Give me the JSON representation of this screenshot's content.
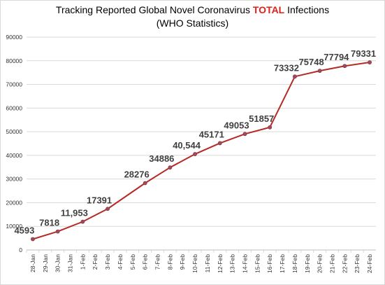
{
  "chart_data": {
    "type": "line",
    "title_prefix": "Tracking Reported Global Novel Coronavirus ",
    "title_highlight": "TOTAL",
    "title_suffix": " Infections",
    "subtitle": "(WHO Statistics)",
    "xlabel": "",
    "ylabel": "",
    "categories": [
      "28-Jan",
      "29-Jan",
      "30-Jan",
      "31-Jan",
      "1-Feb",
      "2-Feb",
      "3-Feb",
      "4-Feb",
      "5-Feb",
      "6-Feb",
      "7-Feb",
      "8-Feb",
      "9-Feb",
      "10-Feb",
      "11-Feb",
      "12-Feb",
      "13-Feb",
      "14-Feb",
      "15-Feb",
      "16-Feb",
      "17-Feb",
      "18-Feb",
      "19-Feb",
      "20-Feb",
      "21-Feb",
      "22-Feb",
      "23-Feb",
      "24-Feb"
    ],
    "points": [
      {
        "category": "28-Jan",
        "value": 4593,
        "label": "4593"
      },
      {
        "category": "30-Jan",
        "value": 7818,
        "label": "7818"
      },
      {
        "category": "1-Feb",
        "value": 11953,
        "label": "11,953"
      },
      {
        "category": "3-Feb",
        "value": 17391,
        "label": "17391"
      },
      {
        "category": "6-Feb",
        "value": 28276,
        "label": "28276"
      },
      {
        "category": "8-Feb",
        "value": 34886,
        "label": "34886"
      },
      {
        "category": "10-Feb",
        "value": 40544,
        "label": "40,544"
      },
      {
        "category": "12-Feb",
        "value": 45171,
        "label": "45171"
      },
      {
        "category": "14-Feb",
        "value": 49053,
        "label": "49053"
      },
      {
        "category": "16-Feb",
        "value": 51857,
        "label": "51857"
      },
      {
        "category": "18-Feb",
        "value": 73332,
        "label": "73332"
      },
      {
        "category": "20-Feb",
        "value": 75748,
        "label": "75748"
      },
      {
        "category": "22-Feb",
        "value": 77794,
        "label": "77794"
      },
      {
        "category": "24-Feb",
        "value": 79331,
        "label": "79331"
      }
    ],
    "yticks": [
      "0",
      "10000",
      "20000",
      "30000",
      "40000",
      "50000",
      "60000",
      "70000",
      "80000",
      "90000"
    ],
    "ylim": [
      0,
      90000
    ],
    "grid": true,
    "legend": "none",
    "colors": {
      "line": "#b52a25",
      "marker": "#a34a5a",
      "grid": "#d9d9d9",
      "highlight": "#e0201b",
      "label": "#404040"
    }
  }
}
